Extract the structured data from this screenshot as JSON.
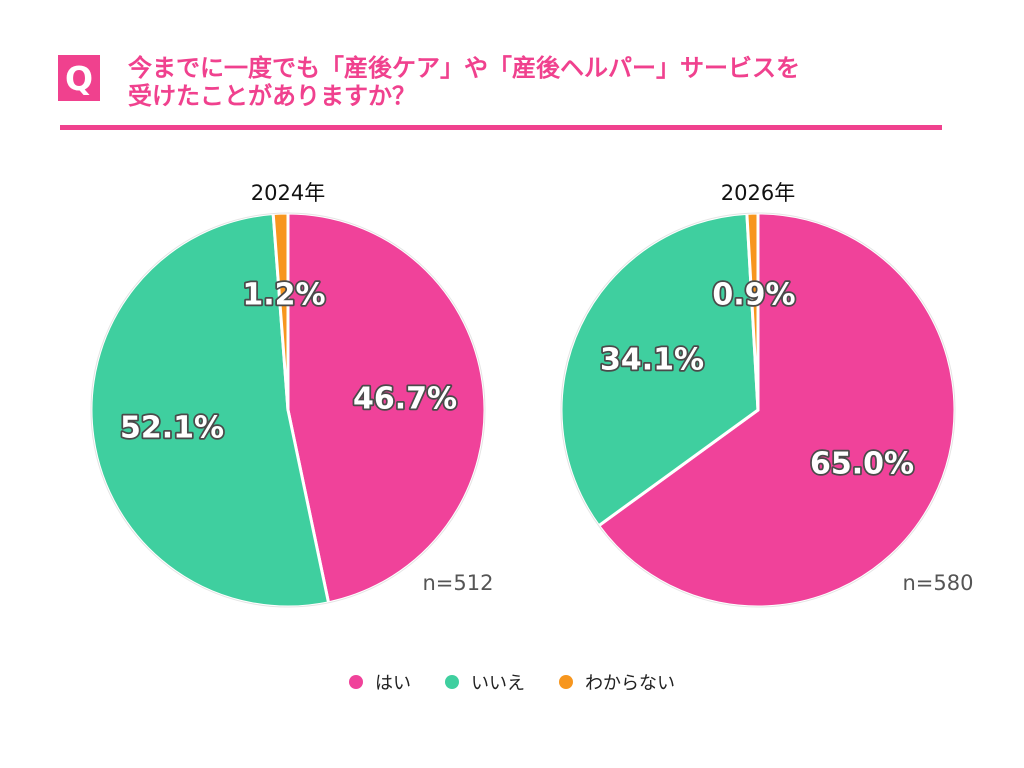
{
  "header": {
    "badge": "Q",
    "title_lines": [
      "今までに一度でも「産後ケア」や「産後ヘルパー」サービスを",
      "受けたことがありますか？"
    ]
  },
  "colors": {
    "accent": "#f0418e",
    "yes": "#f0429a",
    "no": "#3fcf9f",
    "unknown": "#f7961e"
  },
  "legend": [
    {
      "label": "はい",
      "color_key": "yes"
    },
    {
      "label": "いいえ",
      "color_key": "no"
    },
    {
      "label": "わからない",
      "color_key": "unknown"
    }
  ],
  "chart_data": [
    {
      "type": "pie",
      "title": "2024年",
      "note": "n=512",
      "categories": [
        "はい",
        "いいえ",
        "わからない"
      ],
      "values": [
        46.7,
        52.1,
        1.2
      ],
      "labels": [
        "46.7%",
        "52.1%",
        "1.2%"
      ],
      "start": "12 o'clock",
      "direction": "clockwise"
    },
    {
      "type": "pie",
      "title": "2026年",
      "note": "n=580",
      "categories": [
        "はい",
        "いいえ",
        "わからない"
      ],
      "values": [
        65.0,
        34.1,
        0.9
      ],
      "labels": [
        "65.0%",
        "34.1%",
        "0.9%"
      ],
      "start": "12 o'clock",
      "direction": "clockwise"
    }
  ]
}
